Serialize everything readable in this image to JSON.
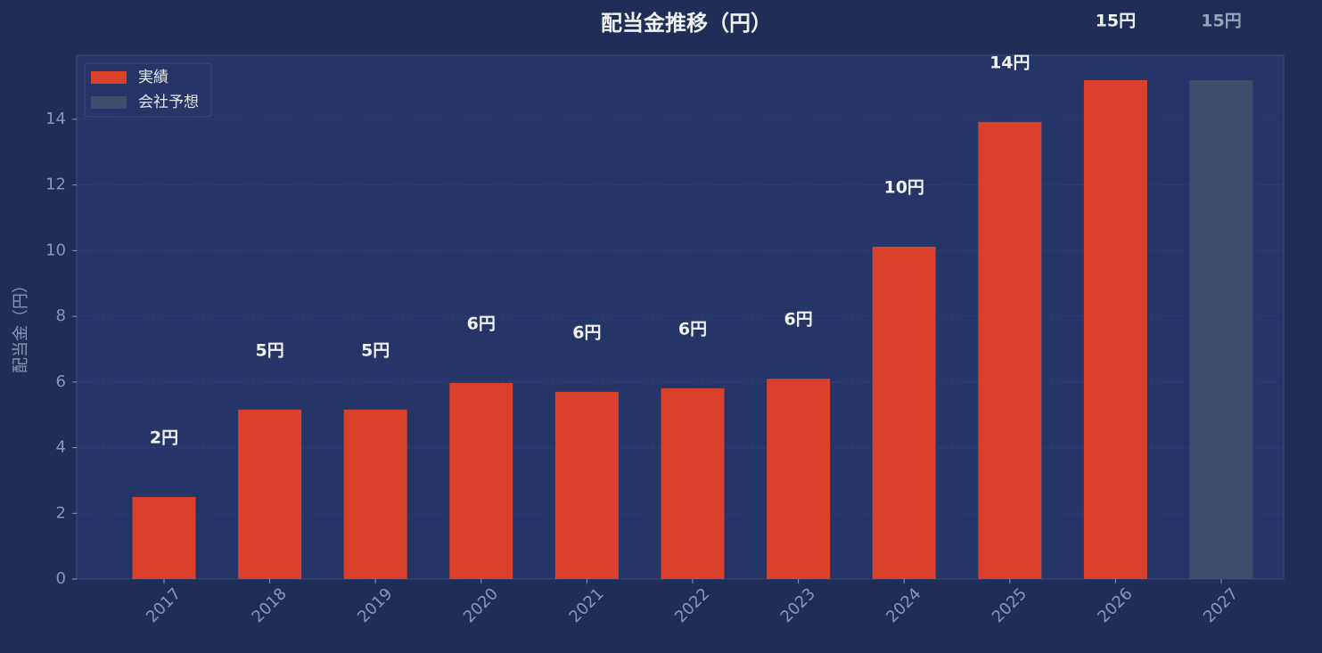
{
  "chart_data": {
    "type": "bar",
    "title": "配当金推移（円）",
    "y_label": "配当金（円）",
    "categories": [
      "2017",
      "2018",
      "2019",
      "2020",
      "2021",
      "2022",
      "2023",
      "2024",
      "2025",
      "2026",
      "2027"
    ],
    "series": [
      {
        "name": "実績",
        "color": "#d9412b",
        "values": [
          2.5,
          5.16,
          5.16,
          5.97,
          5.7,
          5.81,
          6.1,
          10.12,
          13.92,
          15.19,
          null
        ],
        "value_labels": [
          "2円",
          "5円",
          "5円",
          "6円",
          "6円",
          "6円",
          "6円",
          "10円",
          "14円",
          "15円",
          null
        ]
      },
      {
        "name": "会社予想",
        "color": "#3e4d6b",
        "values": [
          null,
          null,
          null,
          null,
          null,
          null,
          null,
          null,
          null,
          null,
          15.19
        ],
        "value_labels": [
          null,
          null,
          null,
          null,
          null,
          null,
          null,
          null,
          null,
          null,
          "15円"
        ]
      }
    ],
    "ylim": [
      0,
      15.95
    ],
    "yticks": [
      0,
      2,
      4,
      6,
      8,
      10,
      12,
      14
    ],
    "grid": true,
    "legend": "upper left"
  }
}
